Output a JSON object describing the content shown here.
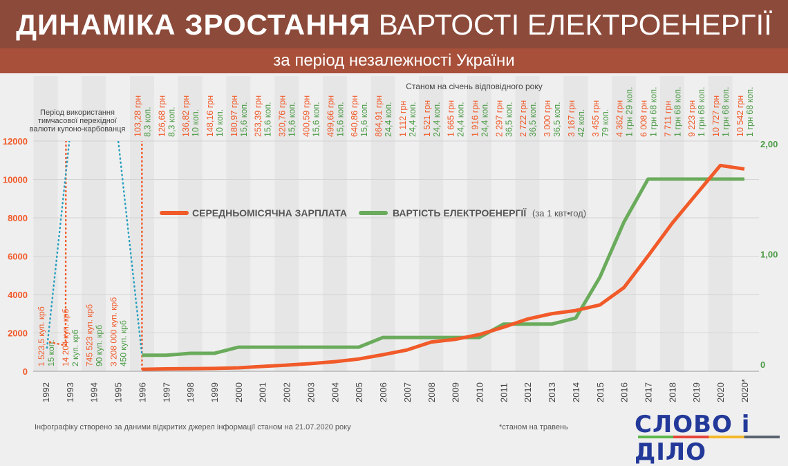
{
  "header": {
    "title_bold": "ДИНАМІКА ЗРОСТАННЯ",
    "title_regular": "ВАРТОСТІ ЕЛЕКТРОЕНЕРГІЇ",
    "subtitle": "за період незалежності України"
  },
  "chart_data": {
    "type": "line",
    "note": "Станом на січень відповідного року",
    "period_note": [
      "Період використання",
      "тимчасової перехідної",
      "валюти купоно-карбованця"
    ],
    "categories": [
      "1992",
      "1993",
      "1994",
      "1995",
      "1996",
      "1997",
      "1998",
      "1999",
      "2000",
      "2001",
      "2002",
      "2003",
      "2004",
      "2005",
      "2006",
      "2007",
      "2008",
      "2009",
      "2010",
      "2011",
      "2012",
      "2013",
      "2014",
      "2015",
      "2016",
      "2017",
      "2018",
      "2019",
      "2020",
      "2020*"
    ],
    "left_axis": {
      "ylim": [
        0,
        12000
      ],
      "ticks": [
        "0",
        "2000",
        "4000",
        "6000",
        "8000",
        "10000",
        "12000"
      ]
    },
    "right_axis": {
      "ylim": [
        0,
        2
      ],
      "ticks": [
        "0",
        "1,00",
        "2,00"
      ]
    },
    "legend": {
      "placement": "center",
      "salary": "СЕРЕДНЬОМІСЯЧНА ЗАРПЛАТА",
      "electricity": "ВАРТІСТЬ ЕЛЕКТРОЕНЕРГІЇ",
      "electricity_unit": "(за 1 квт•год)"
    },
    "series": [
      {
        "name": "СЕРЕДНЬОМІСЯЧНА ЗАРПЛАТА",
        "axis": "left",
        "color": "#f15a29",
        "values": [
          null,
          null,
          null,
          null,
          103.28,
          126.68,
          136.82,
          148.16,
          180.97,
          253.39,
          320.76,
          400.59,
          499.66,
          640.86,
          864.91,
          1112,
          1521,
          1665,
          1916,
          2297,
          2722,
          3000,
          3167,
          3455,
          4362,
          6008,
          7711,
          9223,
          10727,
          10542
        ],
        "labels": [
          "",
          "",
          "",
          "",
          "103,28 грн",
          "126,68 грн",
          "136,82 грн",
          "148,16 грн",
          "180,97 грн",
          "253,39 грн",
          "320,76 грн",
          "400,59 грн",
          "499,66 грн",
          "640,86 грн",
          "864,91 грн",
          "1 112 грн",
          "1 521 грн",
          "1 665 грн",
          "1 916 грн",
          "2 297 грн",
          "2 722 грн",
          "3 000 грн",
          "3 167 грн",
          "3 455 грн",
          "4 362 грн",
          "6 008 грн",
          "7 711 грн",
          "9 223 грн",
          "10 727 грн",
          "10 542 грн"
        ]
      },
      {
        "name": "ВАРТІСТЬ ЕЛЕКТРОЕНЕРГІЇ",
        "axis": "right",
        "color": "#6aab5c",
        "values": [
          null,
          null,
          null,
          null,
          0.083,
          0.083,
          0.1,
          0.1,
          0.156,
          0.156,
          0.156,
          0.156,
          0.156,
          0.156,
          0.244,
          0.244,
          0.244,
          0.244,
          0.244,
          0.365,
          0.365,
          0.365,
          0.42,
          0.79,
          1.29,
          1.68,
          1.68,
          1.68,
          1.68,
          1.68
        ],
        "labels": [
          "",
          "",
          "",
          "",
          "8,3 коп.",
          "8,3 коп.",
          "10 коп.",
          "10 коп.",
          "15,6 коп.",
          "15,6 коп.",
          "15,6 коп.",
          "15,6 коп.",
          "15,6 коп.",
          "15,6 коп.",
          "24,4 коп.",
          "24,4 коп.",
          "24,4 коп.",
          "24,4 коп.",
          "24,4 коп.",
          "36,5 коп.",
          "36,5 коп.",
          "36,5 коп.",
          "42 коп.",
          "79 коп.",
          "1 грн 29 коп.",
          "1 грн 68 коп.",
          "1 грн 68 коп.",
          "1 грн 68 коп.",
          "1 грн 68 коп.",
          "1 грн 68 коп."
        ]
      }
    ],
    "coupon_period": {
      "salary_values": [
        1523.5,
        14204,
        745523,
        3208000
      ],
      "salary_labels": [
        "1 523,5 куп. крб",
        "14 204 куп. крб",
        "745 523 куп. крб",
        "3 208 000 куп. крб"
      ],
      "electricity_labels": [
        "15 коп.",
        "2 куп. крб",
        "90 куп. крб",
        "450 куп. крб"
      ]
    }
  },
  "footer": {
    "source": "Інфографіку створено за даними відкритих джерел інформації станом на 21.07.2020 року",
    "footnote": "*станом на травень"
  },
  "logo": {
    "text": "СЛОВО і ДІЛО"
  }
}
